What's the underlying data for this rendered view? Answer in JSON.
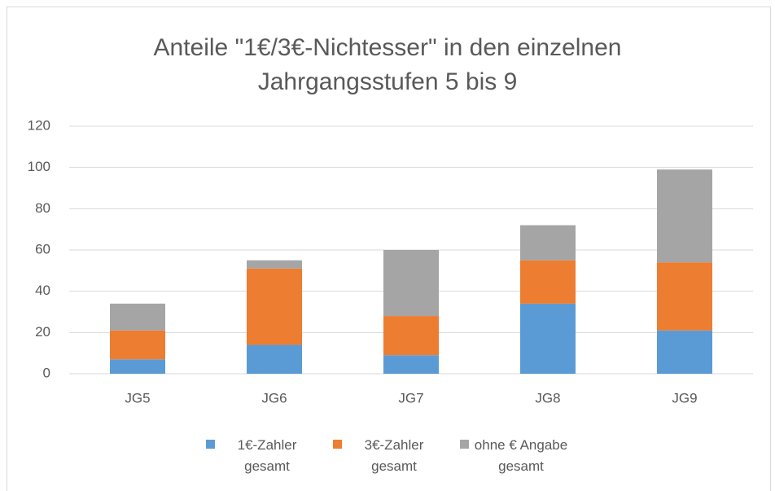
{
  "chart_data": {
    "type": "stacked_bar",
    "title": "Anteile \"1€/3€-Nichtesser\" in den einzelnen Jahrgangsstufen 5 bis 9",
    "categories": [
      "JG5",
      "JG6",
      "JG7",
      "JG8",
      "JG9"
    ],
    "series": [
      {
        "name": "1€-Zahler gesamt",
        "color": "#5b9bd5",
        "values": [
          7,
          14,
          9,
          34,
          21
        ]
      },
      {
        "name": "3€-Zahler gesamt",
        "color": "#ed7d31",
        "values": [
          14,
          37,
          19,
          21,
          33
        ]
      },
      {
        "name": "ohne € Angabe gesamt",
        "color": "#a5a5a5",
        "values": [
          13,
          4,
          32,
          17,
          45
        ]
      }
    ],
    "ylim": [
      0,
      120
    ],
    "yticks": [
      0,
      20,
      40,
      60,
      80,
      100,
      120
    ],
    "grid": true,
    "legend": "bottom"
  }
}
